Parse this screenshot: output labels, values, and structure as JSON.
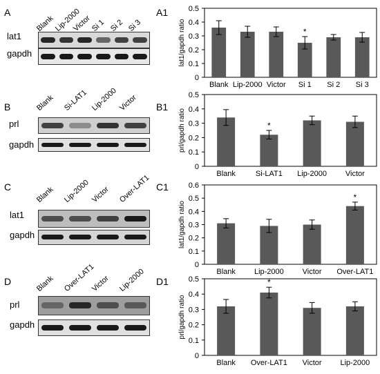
{
  "figure": {
    "panels": [
      {
        "letter": "A",
        "chart_letter": "A1",
        "lanes": [
          "Blank",
          "Lip-2000",
          "Victor",
          "Si 1",
          "Si 2",
          "Si 3"
        ],
        "rows": [
          {
            "label": "lat1",
            "intensity": [
              0.85,
              0.8,
              0.85,
              0.6,
              0.75,
              0.75
            ],
            "bg": "#d9d9d9"
          },
          {
            "label": "gapdh",
            "intensity": [
              0.9,
              0.9,
              0.9,
              0.9,
              0.9,
              0.9
            ],
            "bg": "#e8e8e8"
          }
        ]
      },
      {
        "letter": "B",
        "chart_letter": "B1",
        "lanes": [
          "Blank",
          "Si-LAT1",
          "Lip-2000",
          "Victor"
        ],
        "rows": [
          {
            "label": "prl",
            "intensity": [
              0.75,
              0.45,
              0.8,
              0.75
            ],
            "bg": "#cfcfcf"
          },
          {
            "label": "gapdh",
            "intensity": [
              0.9,
              0.9,
              0.9,
              0.9
            ],
            "bg": "#e0e0e0"
          }
        ]
      },
      {
        "letter": "C",
        "chart_letter": "C1",
        "lanes": [
          "Blank",
          "Lip-2000",
          "Victor",
          "Over-LAT1"
        ],
        "rows": [
          {
            "label": "lat1",
            "intensity": [
              0.7,
              0.7,
              0.75,
              0.9
            ],
            "bg": "#bdbdbd"
          },
          {
            "label": "gapdh",
            "intensity": [
              0.9,
              0.9,
              0.9,
              0.9
            ],
            "bg": "#d4d4d4"
          }
        ]
      },
      {
        "letter": "D",
        "chart_letter": "D1",
        "lanes": [
          "Blank",
          "Over-LAT1",
          "Victor",
          "Lip-2000"
        ],
        "rows": [
          {
            "label": "prl",
            "intensity": [
              0.6,
              0.85,
              0.7,
              0.65
            ],
            "bg": "#9e9e9e"
          },
          {
            "label": "gapdh",
            "intensity": [
              0.9,
              0.9,
              0.9,
              0.9
            ],
            "bg": "#e0e0e0"
          }
        ]
      }
    ]
  },
  "chart_data": [
    {
      "type": "bar",
      "ylabel": "lat1/gapdh ratio",
      "categories": [
        "Blank",
        "Lip-2000",
        "Victor",
        "Si 1",
        "Si 2",
        "Si 3"
      ],
      "values": [
        0.36,
        0.33,
        0.33,
        0.25,
        0.29,
        0.29
      ],
      "errors": [
        0.05,
        0.04,
        0.035,
        0.045,
        0.02,
        0.035
      ],
      "significance": [
        "",
        "",
        "",
        "*",
        "",
        ""
      ],
      "ylim": [
        0,
        0.5
      ],
      "yticks": [
        "0",
        "0.1",
        "0.2",
        "0.3",
        "0.4",
        "0.5"
      ],
      "ytick_values": [
        0,
        0.1,
        0.2,
        0.3,
        0.4,
        0.5
      ],
      "bar_color": "#595959"
    },
    {
      "type": "bar",
      "ylabel": "prl/gapdh ratio",
      "categories": [
        "Blank",
        "Si-LAT1",
        "Lip-2000",
        "Victor"
      ],
      "values": [
        0.34,
        0.22,
        0.32,
        0.31
      ],
      "errors": [
        0.055,
        0.03,
        0.03,
        0.04
      ],
      "significance": [
        "",
        "*",
        "",
        ""
      ],
      "ylim": [
        0,
        0.5
      ],
      "yticks": [
        "0",
        "0.1",
        "0.2",
        "0.3",
        "0.4",
        "0.5"
      ],
      "ytick_values": [
        0,
        0.1,
        0.2,
        0.3,
        0.4,
        0.5
      ],
      "bar_color": "#595959"
    },
    {
      "type": "bar",
      "ylabel": "lat1/gapdh ratio",
      "categories": [
        "Blank",
        "Lip-2000",
        "Victor",
        "Over-LAT1"
      ],
      "values": [
        0.31,
        0.29,
        0.3,
        0.44
      ],
      "errors": [
        0.035,
        0.05,
        0.035,
        0.03
      ],
      "significance": [
        "",
        "",
        "",
        "*"
      ],
      "ylim": [
        0,
        0.6
      ],
      "yticks": [
        "0",
        "0.1",
        "0.2",
        "0.3",
        "0.4",
        "0.5",
        "0.6"
      ],
      "ytick_values": [
        0,
        0.1,
        0.2,
        0.3,
        0.4,
        0.5,
        0.6
      ],
      "bar_color": "#595959"
    },
    {
      "type": "bar",
      "ylabel": "prl/gapdh ratio",
      "categories": [
        "Blank",
        "Over-LAT1",
        "Victor",
        "Lip-2000"
      ],
      "values": [
        0.32,
        0.41,
        0.31,
        0.32
      ],
      "errors": [
        0.045,
        0.035,
        0.035,
        0.03
      ],
      "significance": [
        "",
        "*",
        "",
        ""
      ],
      "ylim": [
        0,
        0.5
      ],
      "yticks": [
        "0",
        "0.1",
        "0.2",
        "0.3",
        "0.4",
        "0.5"
      ],
      "ytick_values": [
        0,
        0.1,
        0.2,
        0.3,
        0.4,
        0.5
      ],
      "bar_color": "#595959"
    }
  ]
}
